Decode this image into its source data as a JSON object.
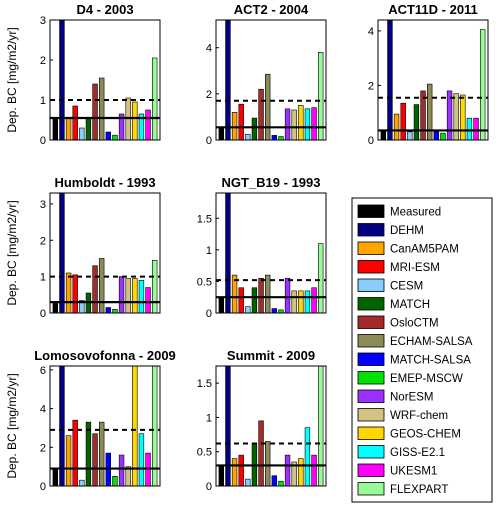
{
  "colors": {
    "Measured": "#000000",
    "DEHM": "#000080",
    "CanAM5PAM": "#ffa500",
    "MRI-ESM": "#ff0000",
    "CESM": "#87cefa",
    "MATCH": "#006400",
    "OsloCTM": "#a52a2a",
    "ECHAM-SALSA": "#8b8b5a",
    "MATCH-SALSA": "#0000ff",
    "EMEP-MSCW": "#00e100",
    "NorESM": "#9b30ff",
    "WRF-chem": "#d2c383",
    "GEOS-CHEM": "#ffd700",
    "GISS-E2.1": "#00ffff",
    "UKESM1": "#ff00ff",
    "FLEXPART": "#98fb98"
  },
  "legend": {
    "entries": [
      "Measured",
      "DEHM",
      "CanAM5PAM",
      "MRI-ESM",
      "CESM",
      "MATCH",
      "OsloCTM",
      "ECHAM-SALSA",
      "MATCH-SALSA",
      "EMEP-MSCW",
      "NorESM",
      "WRF-chem",
      "GEOS-CHEM",
      "GISS-E2.1",
      "UKESM1",
      "FLEXPART"
    ]
  },
  "chart_data": [
    {
      "type": "bar",
      "title": "D4 - 2003",
      "ylabel": "Dep. BC [mg/m2/yr]",
      "ylim": [
        0,
        3.0
      ],
      "yticks": [
        0,
        1,
        2,
        3
      ],
      "measured_line": 0.55,
      "dashed_line": 1.0,
      "categories": [
        "Measured",
        "DEHM",
        "CanAM5PAM",
        "MRI-ESM",
        "CESM",
        "MATCH",
        "OsloCTM",
        "ECHAM-SALSA",
        "MATCH-SALSA",
        "EMEP-MSCW",
        "NorESM",
        "WRF-chem",
        "GEOS-CHEM",
        "GISS-E2.1",
        "UKESM1",
        "FLEXPART"
      ],
      "values": [
        0.55,
        3.2,
        0.55,
        0.85,
        0.3,
        0.55,
        1.4,
        1.55,
        0.2,
        0.12,
        0.65,
        1.05,
        0.95,
        0.65,
        0.75,
        2.05
      ]
    },
    {
      "type": "bar",
      "title": "ACT2 - 2004",
      "ylabel": "",
      "ylim": [
        0,
        5.2
      ],
      "yticks": [
        0,
        2,
        4
      ],
      "measured_line": 0.55,
      "dashed_line": 1.7,
      "categories": [
        "Measured",
        "DEHM",
        "CanAM5PAM",
        "MRI-ESM",
        "CESM",
        "MATCH",
        "OsloCTM",
        "ECHAM-SALSA",
        "MATCH-SALSA",
        "EMEP-MSCW",
        "NorESM",
        "WRF-chem",
        "GEOS-CHEM",
        "GISS-E2.1",
        "UKESM1",
        "FLEXPART"
      ],
      "values": [
        0.55,
        5.6,
        1.2,
        1.55,
        0.25,
        0.95,
        2.2,
        2.85,
        0.2,
        0.15,
        1.35,
        1.3,
        1.5,
        1.35,
        1.4,
        3.8
      ]
    },
    {
      "type": "bar",
      "title": "ACT11D - 2011",
      "ylabel": "",
      "ylim": [
        0,
        4.4
      ],
      "yticks": [
        0,
        2,
        4
      ],
      "measured_line": 0.35,
      "dashed_line": 1.55,
      "categories": [
        "Measured",
        "DEHM",
        "CanAM5PAM",
        "MRI-ESM",
        "CESM",
        "MATCH",
        "OsloCTM",
        "ECHAM-SALSA",
        "MATCH-SALSA",
        "EMEP-MSCW",
        "NorESM",
        "WRF-chem",
        "GEOS-CHEM",
        "GISS-E2.1",
        "UKESM1",
        "FLEXPART"
      ],
      "values": [
        0.35,
        4.6,
        0.95,
        1.35,
        0.3,
        1.3,
        1.8,
        2.05,
        0.3,
        0.25,
        1.8,
        1.7,
        1.65,
        0.8,
        0.8,
        4.05
      ]
    },
    {
      "type": "bar",
      "title": "Humboldt - 1993",
      "ylabel": "Dep. BC [mg/m2/yr]",
      "ylim": [
        0,
        3.3
      ],
      "yticks": [
        0,
        1,
        2,
        3
      ],
      "measured_line": 0.3,
      "dashed_line": 1.0,
      "categories": [
        "Measured",
        "DEHM",
        "CanAM5PAM",
        "MRI-ESM",
        "CESM",
        "MATCH",
        "OsloCTM",
        "ECHAM-SALSA",
        "MATCH-SALSA",
        "EMEP-MSCW",
        "NorESM",
        "WRF-chem",
        "GEOS-CHEM",
        "GISS-E2.1",
        "UKESM1",
        "FLEXPART"
      ],
      "values": [
        0.3,
        3.5,
        1.1,
        1.05,
        0.35,
        0.55,
        1.3,
        1.5,
        0.15,
        0.1,
        1.0,
        0.95,
        0.95,
        0.9,
        0.7,
        1.45
      ]
    },
    {
      "type": "bar",
      "title": "NGT_B19 - 1993",
      "ylabel": "",
      "ylim": [
        0,
        1.9
      ],
      "yticks": [
        0,
        0.5,
        1,
        1.5
      ],
      "measured_line": 0.25,
      "dashed_line": 0.52,
      "categories": [
        "Measured",
        "DEHM",
        "CanAM5PAM",
        "MRI-ESM",
        "CESM",
        "MATCH",
        "OsloCTM",
        "ECHAM-SALSA",
        "MATCH-SALSA",
        "EMEP-MSCW",
        "NorESM",
        "WRF-chem",
        "GEOS-CHEM",
        "GISS-E2.1",
        "UKESM1",
        "FLEXPART"
      ],
      "values": [
        0.25,
        2.0,
        0.6,
        0.4,
        0.1,
        0.4,
        0.55,
        0.6,
        0.07,
        0.05,
        0.55,
        0.35,
        0.35,
        0.35,
        0.4,
        1.1
      ]
    },
    {
      "type": "bar",
      "title": "Lomosovofonna - 2009",
      "ylabel": "Dep. BC [mg/m2/yr]",
      "ylim": [
        0,
        6.2
      ],
      "yticks": [
        0,
        2,
        4,
        6
      ],
      "measured_line": 0.9,
      "dashed_line": 2.9,
      "categories": [
        "Measured",
        "DEHM",
        "CanAM5PAM",
        "MRI-ESM",
        "CESM",
        "MATCH",
        "OsloCTM",
        "ECHAM-SALSA",
        "MATCH-SALSA",
        "EMEP-MSCW",
        "NorESM",
        "WRF-chem",
        "GEOS-CHEM",
        "GISS-E2.1",
        "UKESM1",
        "FLEXPART"
      ],
      "values": [
        0.9,
        6.5,
        2.6,
        3.4,
        0.3,
        3.3,
        2.7,
        3.3,
        1.7,
        0.5,
        1.6,
        1.0,
        6.5,
        2.7,
        1.7,
        6.5
      ]
    },
    {
      "type": "bar",
      "title": "Summit - 2009",
      "ylabel": "",
      "ylim": [
        0,
        1.75
      ],
      "yticks": [
        0,
        0.5,
        1,
        1.5
      ],
      "measured_line": 0.3,
      "dashed_line": 0.62,
      "categories": [
        "Measured",
        "DEHM",
        "CanAM5PAM",
        "MRI-ESM",
        "CESM",
        "MATCH",
        "OsloCTM",
        "ECHAM-SALSA",
        "MATCH-SALSA",
        "EMEP-MSCW",
        "NorESM",
        "WRF-chem",
        "GEOS-CHEM",
        "GISS-E2.1",
        "UKESM1",
        "FLEXPART"
      ],
      "values": [
        0.3,
        1.85,
        0.4,
        0.45,
        0.1,
        0.62,
        0.95,
        0.65,
        0.15,
        0.07,
        0.45,
        0.35,
        0.4,
        0.85,
        0.45,
        1.85
      ]
    }
  ]
}
